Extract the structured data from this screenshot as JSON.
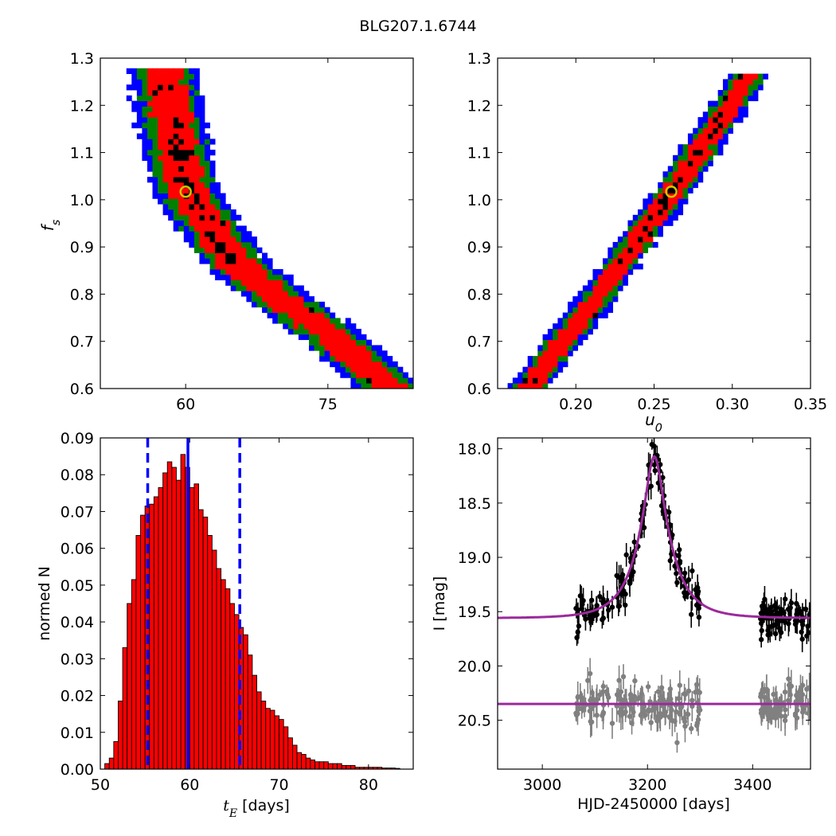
{
  "figure": {
    "title": "BLG207.1.6744"
  },
  "chart_data": [
    {
      "id": "fs_vs_tE",
      "type": "heatmap",
      "title": "",
      "xlabel": "",
      "ylabel": "f_s",
      "xlim": [
        51,
        84
      ],
      "ylim": [
        0.6,
        1.3
      ],
      "xticks": [
        60,
        75
      ],
      "yticks": [
        0.6,
        0.7,
        0.8,
        0.9,
        1.0,
        1.1,
        1.2,
        1.3
      ],
      "levels": [
        {
          "name": "outer",
          "color": "#0000ff"
        },
        {
          "name": "middle",
          "color": "#008000"
        },
        {
          "name": "inner",
          "color": "#ff0000"
        },
        {
          "name": "best",
          "color": "#000000"
        }
      ],
      "ridge": [
        [
          57.5,
          1.28
        ],
        [
          60.0,
          1.02
        ],
        [
          65.0,
          0.87
        ],
        [
          70.0,
          0.79
        ],
        [
          76.0,
          0.7
        ],
        [
          81.5,
          0.6
        ]
      ],
      "best_fit": {
        "x": 60.0,
        "y": 1.017
      }
    },
    {
      "id": "fs_vs_u0",
      "type": "heatmap",
      "title": "",
      "xlabel": "u_0",
      "ylabel": "",
      "xlim": [
        0.15,
        0.35
      ],
      "ylim": [
        0.6,
        1.3
      ],
      "xticks": [
        0.2,
        0.25,
        0.3,
        0.35
      ],
      "yticks": [
        0.6,
        0.7,
        0.8,
        0.9,
        1.0,
        1.1,
        1.2,
        1.3
      ],
      "levels": [
        {
          "name": "outer",
          "color": "#0000ff"
        },
        {
          "name": "middle",
          "color": "#008000"
        },
        {
          "name": "inner",
          "color": "#ff0000"
        },
        {
          "name": "best",
          "color": "#000000"
        }
      ],
      "ridge": [
        [
          0.169,
          0.6
        ],
        [
          0.215,
          0.8
        ],
        [
          0.262,
          1.02
        ],
        [
          0.312,
          1.27
        ]
      ],
      "best_fit": {
        "x": 0.261,
        "y": 1.017
      }
    },
    {
      "id": "tE_histogram",
      "type": "bar",
      "title": "",
      "xlabel": "t_E [days]",
      "ylabel": "normed N",
      "xlim": [
        50,
        85
      ],
      "ylim": [
        0,
        0.09
      ],
      "xticks": [
        50,
        60,
        70,
        80
      ],
      "yticks": [
        0.0,
        0.01,
        0.02,
        0.03,
        0.04,
        0.05,
        0.06,
        0.07,
        0.08,
        0.09
      ],
      "bin_start": 50.5,
      "bin_width": 0.5,
      "values": [
        0.0015,
        0.003,
        0.0075,
        0.0185,
        0.033,
        0.045,
        0.0515,
        0.0635,
        0.069,
        0.0715,
        0.072,
        0.074,
        0.0765,
        0.0805,
        0.0835,
        0.082,
        0.0785,
        0.0855,
        0.082,
        0.0765,
        0.0775,
        0.0705,
        0.0685,
        0.0635,
        0.0595,
        0.0545,
        0.0515,
        0.049,
        0.045,
        0.042,
        0.0385,
        0.0365,
        0.031,
        0.0255,
        0.021,
        0.0185,
        0.0165,
        0.016,
        0.0145,
        0.0135,
        0.0115,
        0.0085,
        0.0065,
        0.0045,
        0.004,
        0.003,
        0.0025,
        0.002,
        0.002,
        0.002,
        0.0015,
        0.0015,
        0.0015,
        0.001,
        0.001,
        0.001,
        0.0005,
        0.0005,
        0.0005,
        0.0005,
        0.0005,
        0.0005,
        0.0003,
        0.0003,
        0.0003,
        0.0002
      ],
      "bar_color": "#ff0000",
      "vlines": [
        {
          "x": 59.8,
          "style": "solid",
          "color": "#0000ff"
        },
        {
          "x": 55.3,
          "style": "dashed",
          "color": "#0000ff"
        },
        {
          "x": 65.6,
          "style": "dashed",
          "color": "#0000ff"
        }
      ]
    },
    {
      "id": "light_curve",
      "type": "scatter",
      "title": "",
      "xlabel": "HJD-2450000 [days]",
      "ylabel": "I [mag]",
      "xlim": [
        2915,
        3510
      ],
      "ylim": [
        20.95,
        17.9
      ],
      "xticks": [
        3000,
        3200,
        3400
      ],
      "yticks": [
        18.0,
        18.5,
        19.0,
        19.5,
        20.0,
        20.5
      ],
      "y_inverted": true,
      "model": {
        "t0": 3213,
        "tE": 60,
        "u0": 0.26,
        "baseline": 19.56,
        "color": "#9b2a9b"
      },
      "reference": {
        "baseline": 20.35,
        "color": "#9b2a9b"
      },
      "series": [
        {
          "name": "",
          "color": "#000000"
        },
        {
          "name": "",
          "color": "#808080"
        }
      ]
    }
  ]
}
